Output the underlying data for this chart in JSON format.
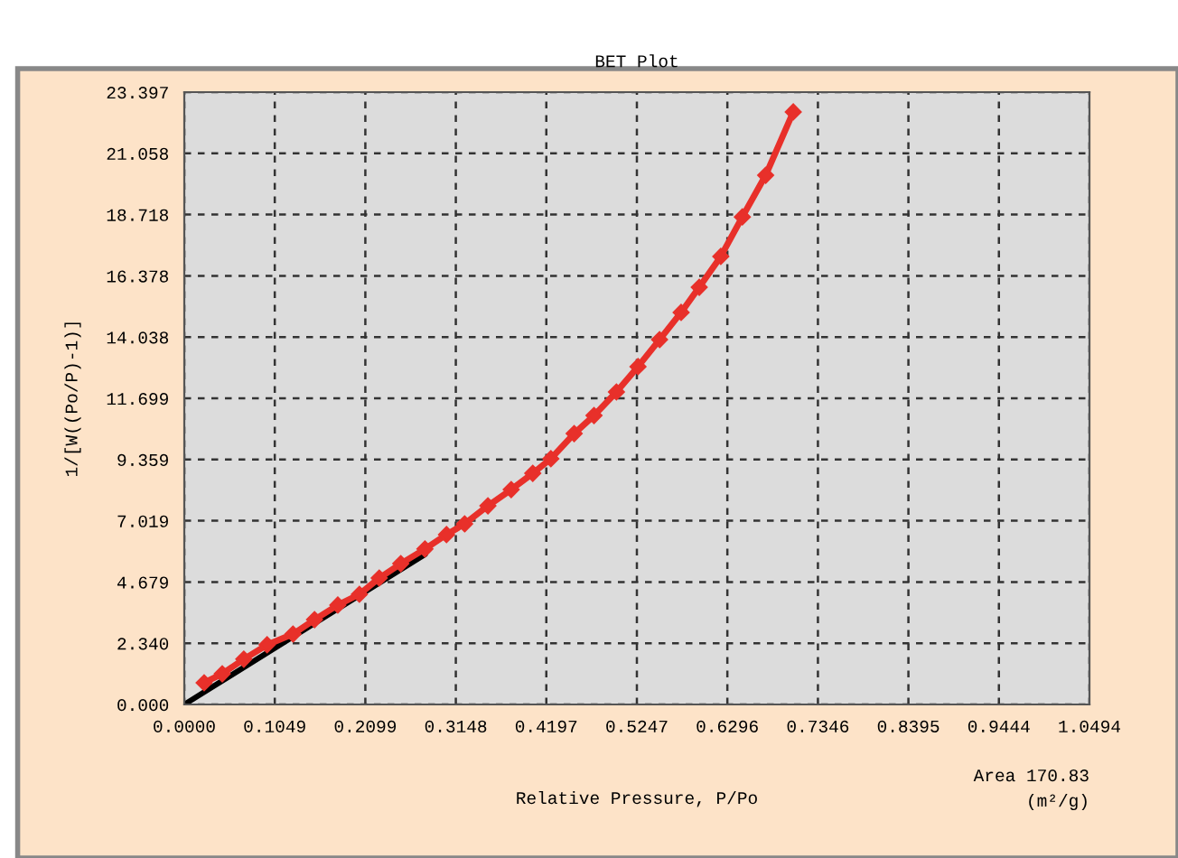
{
  "chart_data": {
    "type": "line",
    "title": "BET Plot",
    "xlabel": "Relative Pressure, P/Po",
    "ylabel": "1/[W((Po/P)-1)]",
    "annotations": [
      "Area 170.83\n(m²/g)"
    ],
    "xlim": [
      0,
      1.0494
    ],
    "ylim": [
      0,
      23.397
    ],
    "xticks": [
      {
        "value": 0,
        "label": "0.0000"
      },
      {
        "value": 0.1049,
        "label": "0.1049"
      },
      {
        "value": 0.2099,
        "label": "0.2099"
      },
      {
        "value": 0.3148,
        "label": "0.3148"
      },
      {
        "value": 0.4197,
        "label": "0.4197"
      },
      {
        "value": 0.5247,
        "label": "0.5247"
      },
      {
        "value": 0.6296,
        "label": "0.6296"
      },
      {
        "value": 0.7346,
        "label": "0.7346"
      },
      {
        "value": 0.8395,
        "label": "0.8395"
      },
      {
        "value": 0.9444,
        "label": "0.9444"
      },
      {
        "value": 1.0494,
        "label": "1.0494"
      }
    ],
    "yticks": [
      {
        "value": 0,
        "label": "0.000"
      },
      {
        "value": 2.34,
        "label": "2.340"
      },
      {
        "value": 4.679,
        "label": "4.679"
      },
      {
        "value": 7.019,
        "label": "7.019"
      },
      {
        "value": 9.359,
        "label": "9.359"
      },
      {
        "value": 11.699,
        "label": "11.699"
      },
      {
        "value": 14.038,
        "label": "14.038"
      },
      {
        "value": 16.378,
        "label": "16.378"
      },
      {
        "value": 18.718,
        "label": "18.718"
      },
      {
        "value": 21.058,
        "label": "21.058"
      },
      {
        "value": 23.397,
        "label": "23.397"
      }
    ],
    "grid": true,
    "series": [
      {
        "color": "#e8302a",
        "marker": "diamond",
        "x": [
          0.023,
          0.044,
          0.069,
          0.096,
          0.126,
          0.151,
          0.178,
          0.203,
          0.226,
          0.251,
          0.279,
          0.304,
          0.325,
          0.352,
          0.379,
          0.404,
          0.425,
          0.452,
          0.475,
          0.501,
          0.526,
          0.551,
          0.576,
          0.597,
          0.622,
          0.647,
          0.674,
          0.706
        ],
        "values": [
          0.83,
          1.17,
          1.73,
          2.28,
          2.69,
          3.24,
          3.8,
          4.21,
          4.83,
          5.38,
          5.94,
          6.49,
          6.9,
          7.59,
          8.21,
          8.83,
          9.39,
          10.35,
          11.04,
          11.94,
          12.91,
          13.94,
          14.98,
          15.94,
          17.12,
          18.63,
          20.22,
          22.64
        ]
      },
      {
        "color": "#000000",
        "marker": "none",
        "x": [
          0,
          0.279
        ],
        "values": [
          0,
          5.73
        ]
      }
    ]
  }
}
